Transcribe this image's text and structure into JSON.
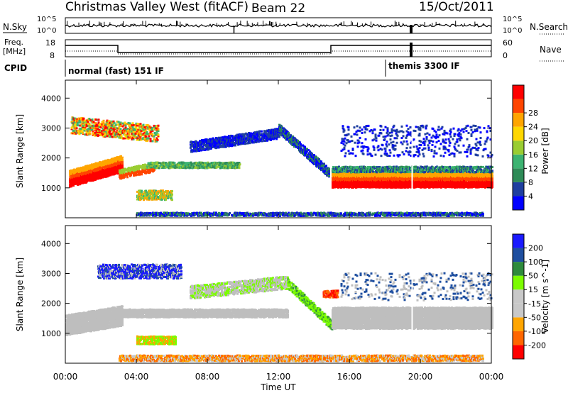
{
  "header": {
    "title": "Christmas Valley West (fitACF)",
    "beam": "Beam 22",
    "date": "15/Oct/2011"
  },
  "top_panels": {
    "nsky_label": "N.Sky",
    "nsky_ticks": [
      "10^5",
      "10^0"
    ],
    "nsearch_label": "N.Search",
    "freq_label_1": "Freq.",
    "freq_label_2": "[MHz]",
    "freq_ticks_left": [
      "18",
      "8"
    ],
    "freq_ticks_right": [
      "60",
      "0"
    ],
    "nave_label": "Nave",
    "cpid_label": "CPID",
    "cpid_modes": [
      "normal (fast) 151 IF",
      "themis 3300 IF"
    ]
  },
  "colors": {
    "power_scale": [
      "#0000ff",
      "#1f3fa0",
      "#2e8b57",
      "#3cb371",
      "#9acd32",
      "#ffd700",
      "#ffa500",
      "#ff4500",
      "#ff0000"
    ],
    "velocity_scale": [
      "#1a1aff",
      "#1f4fa0",
      "#2e8b3c",
      "#7cfc00",
      "#c8c8c8",
      "#c8c8c8",
      "#ffa500",
      "#ff6600",
      "#ff0000"
    ],
    "ground_scatter": "#bebebe"
  },
  "chart_data": [
    {
      "type": "heatmap",
      "name": "power",
      "ylabel": "Slant Range [km]",
      "yticks": [
        "1000",
        "2000",
        "3000",
        "4000"
      ],
      "ylim": [
        0,
        4600
      ],
      "colorbar_label": "Power [dB]",
      "colorbar_ticks": [
        "4",
        "8",
        "12",
        "16",
        "20",
        "24",
        "28"
      ]
    },
    {
      "type": "heatmap",
      "name": "velocity",
      "ylabel": "Slant Range [km]",
      "yticks": [
        "1000",
        "2000",
        "3000",
        "4000"
      ],
      "ylim": [
        0,
        4600
      ],
      "colorbar_label": "Velocity [m s^-1]",
      "colorbar_ticks": [
        "200",
        "100",
        "50",
        "15",
        "-15",
        "-50",
        "-100",
        "-200"
      ],
      "xlabel": "Time UT",
      "xticks": [
        "00:00",
        "04:00",
        "08:00",
        "12:00",
        "16:00",
        "20:00",
        "00:00"
      ]
    }
  ]
}
